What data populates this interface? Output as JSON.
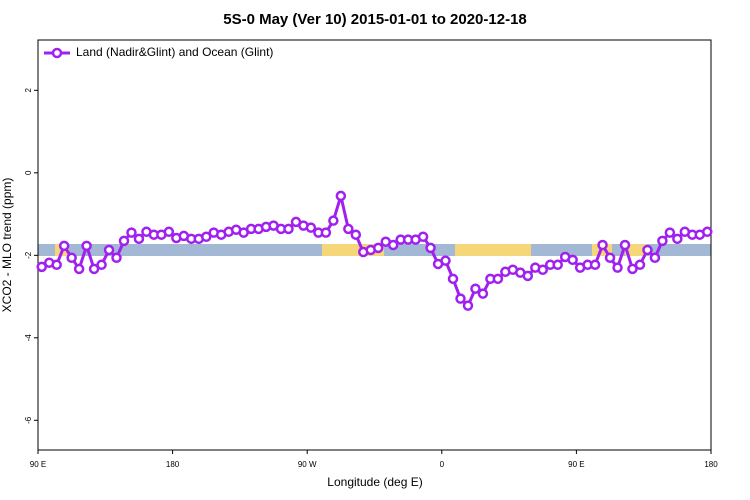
{
  "chart_data": {
    "type": "line",
    "title": "5S-0 May (Ver 10)   2015-01-01 to 2020-12-18",
    "xlabel": "Longitude (deg E)",
    "ylabel": "XCO2 - MLO trend (ppm)",
    "xlim": [
      90,
      540
    ],
    "ylim": [
      -6.72,
      3.22
    ],
    "xticks": [
      {
        "value": 90,
        "label": "90 E"
      },
      180,
      {
        "value": 270,
        "label": "90 W"
      },
      {
        "value": 360,
        "label": "0"
      },
      {
        "value": 450,
        "label": "90 E"
      },
      {
        "value": 540,
        "label": "180"
      }
    ],
    "yticks": [
      2,
      0,
      -2,
      -4,
      -6
    ],
    "legend": "top-left",
    "x": [
      92.5,
      97.5,
      102.5,
      107.5,
      112.5,
      117.5,
      122.5,
      127.5,
      132.5,
      137.5,
      142.5,
      147.5,
      152.5,
      157.5,
      162.5,
      167.5,
      172.5,
      177.5,
      182.5,
      187.5,
      192.5,
      197.5,
      202.5,
      207.5,
      212.5,
      217.5,
      222.5,
      227.5,
      232.5,
      237.5,
      242.5,
      247.5,
      252.5,
      257.5,
      262.5,
      267.5,
      272.5,
      277.5,
      282.5,
      287.5,
      292.5,
      297.5,
      302.5,
      307.5,
      312.5,
      317.5,
      322.5,
      327.5,
      332.5,
      337.5,
      342.5,
      347.5,
      352.5,
      357.5,
      362.5,
      367.5,
      372.5,
      377.5,
      382.5,
      387.5,
      392.5,
      397.5,
      402.5,
      407.5,
      412.5,
      417.5,
      422.5,
      427.5,
      432.5,
      437.5,
      442.5,
      447.5,
      452.5,
      457.5,
      462.5,
      467.5,
      472.5,
      477.5,
      482.5,
      487.5,
      492.5,
      497.5,
      502.5,
      507.5,
      512.5,
      517.5,
      522.5,
      527.5,
      532.5,
      537.5
    ],
    "series": [
      {
        "name": "Land (Nadir&Glint) and Ocean (Glint)",
        "color": "#a020f0",
        "values": [
          -2.28,
          -2.18,
          -2.23,
          -1.77,
          -2.06,
          -2.33,
          -1.77,
          -2.33,
          -2.23,
          -1.87,
          -2.06,
          -1.65,
          -1.45,
          -1.6,
          -1.43,
          -1.5,
          -1.5,
          -1.43,
          -1.58,
          -1.53,
          -1.6,
          -1.6,
          -1.55,
          -1.45,
          -1.5,
          -1.43,
          -1.38,
          -1.45,
          -1.36,
          -1.36,
          -1.31,
          -1.28,
          -1.36,
          -1.36,
          -1.19,
          -1.28,
          -1.33,
          -1.45,
          -1.45,
          -1.16,
          -0.56,
          -1.36,
          -1.5,
          -1.92,
          -1.87,
          -1.82,
          -1.67,
          -1.75,
          -1.62,
          -1.62,
          -1.62,
          -1.55,
          -1.82,
          -2.21,
          -2.13,
          -2.57,
          -3.05,
          -3.22,
          -2.81,
          -2.93,
          -2.57,
          -2.57,
          -2.4,
          -2.35,
          -2.42,
          -2.5,
          -2.3,
          -2.35,
          -2.23,
          -2.23,
          -2.04,
          -2.11,
          -2.3,
          -2.23,
          -2.23,
          -1.75,
          -2.06,
          -2.3,
          -1.75,
          -2.33,
          -2.23,
          -1.87,
          -2.06,
          -1.65,
          -1.45,
          -1.6,
          -1.43,
          -1.5,
          -1.5,
          -1.43
        ]
      }
    ]
  }
}
